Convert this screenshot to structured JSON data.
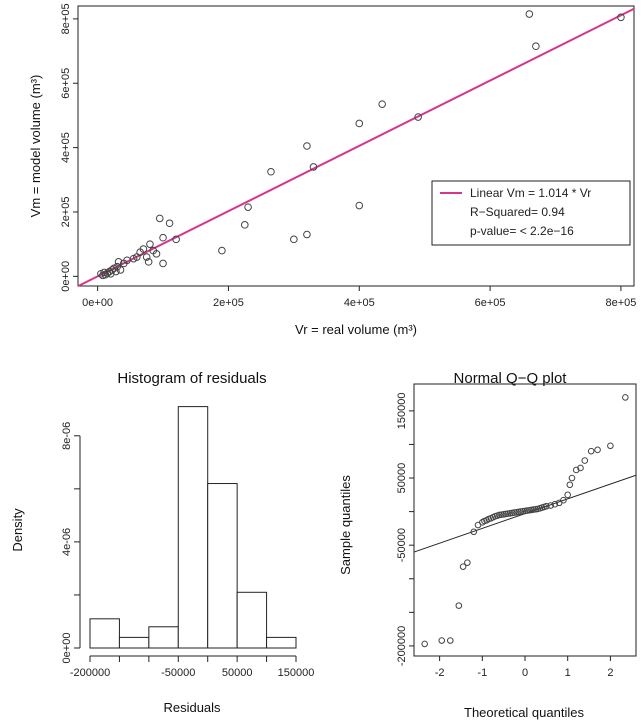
{
  "colors": {
    "fit_line": "#d6348f",
    "points": "#444444"
  },
  "chart_data": [
    {
      "type": "scatter",
      "xlabel": "Vr = real volume (m³)",
      "ylabel": "Vm = model volume (m³)",
      "xlim": [
        -30000,
        820000
      ],
      "ylim": [
        -30000,
        840000
      ],
      "x_ticks": [
        "0e+00",
        "2e+05",
        "4e+05",
        "6e+05",
        "8e+05"
      ],
      "x_tick_values": [
        0,
        200000,
        400000,
        600000,
        800000
      ],
      "y_ticks": [
        "0e+00",
        "2e+05",
        "4e+05",
        "6e+05",
        "8e+05"
      ],
      "y_tick_values": [
        0,
        200000,
        400000,
        600000,
        800000
      ],
      "legend": {
        "position": "bottom-right",
        "entries": [
          "Linear Vm = 1.014 * Vr",
          "R−Squared= 0.94",
          "p-value= < 2.2e−16"
        ]
      },
      "fit": {
        "slope": 1.014,
        "intercept": 0
      },
      "points": [
        [
          5000,
          8000
        ],
        [
          8000,
          3000
        ],
        [
          10000,
          12000
        ],
        [
          12000,
          5000
        ],
        [
          15000,
          10000
        ],
        [
          18000,
          15000
        ],
        [
          20000,
          8000
        ],
        [
          22000,
          20000
        ],
        [
          25000,
          25000
        ],
        [
          28000,
          15000
        ],
        [
          30000,
          30000
        ],
        [
          32000,
          45000
        ],
        [
          35000,
          20000
        ],
        [
          40000,
          40000
        ],
        [
          45000,
          50000
        ],
        [
          55000,
          55000
        ],
        [
          60000,
          60000
        ],
        [
          65000,
          75000
        ],
        [
          70000,
          85000
        ],
        [
          75000,
          60000
        ],
        [
          78000,
          45000
        ],
        [
          80000,
          100000
        ],
        [
          85000,
          80000
        ],
        [
          90000,
          70000
        ],
        [
          95000,
          180000
        ],
        [
          100000,
          40000
        ],
        [
          100000,
          120000
        ],
        [
          110000,
          165000
        ],
        [
          120000,
          115000
        ],
        [
          190000,
          80000
        ],
        [
          225000,
          160000
        ],
        [
          230000,
          215000
        ],
        [
          265000,
          325000
        ],
        [
          300000,
          115000
        ],
        [
          320000,
          130000
        ],
        [
          320000,
          405000
        ],
        [
          330000,
          340000
        ],
        [
          400000,
          220000
        ],
        [
          400000,
          475000
        ],
        [
          435000,
          535000
        ],
        [
          490000,
          495000
        ],
        [
          660000,
          815000
        ],
        [
          670000,
          715000
        ],
        [
          800000,
          805000
        ]
      ]
    },
    {
      "type": "bar",
      "title": "Histogram of residuals",
      "xlabel": "Residuals",
      "ylabel": "Density",
      "xlim": [
        -200000,
        150000
      ],
      "ylim": [
        0,
        9.5e-06
      ],
      "x_ticks": [
        "-200000",
        "-50000",
        "50000",
        "150000"
      ],
      "x_tick_values": [
        -200000,
        -50000,
        50000,
        150000
      ],
      "y_ticks": [
        "0e+00",
        "4e-06",
        "8e-06"
      ],
      "y_tick_values": [
        0,
        4e-06,
        8e-06
      ],
      "bins": [
        {
          "from": -200000,
          "to": -150000,
          "density": 1.1e-06
        },
        {
          "from": -150000,
          "to": -100000,
          "density": 4e-07
        },
        {
          "from": -100000,
          "to": -50000,
          "density": 8e-07
        },
        {
          "from": -50000,
          "to": 0,
          "density": 9.1e-06
        },
        {
          "from": 0,
          "to": 50000,
          "density": 6.2e-06
        },
        {
          "from": 50000,
          "to": 100000,
          "density": 2.1e-06
        },
        {
          "from": 100000,
          "to": 150000,
          "density": 4e-07
        }
      ]
    },
    {
      "type": "scatter",
      "title": "Normal Q−Q plot",
      "xlabel": "Theoretical quantiles",
      "ylabel": "Sample quantiles",
      "xlim": [
        -2.6,
        2.6
      ],
      "ylim": [
        -215000,
        190000
      ],
      "x_ticks": [
        "-2",
        "-1",
        "0",
        "1",
        "2"
      ],
      "x_tick_values": [
        -2,
        -1,
        0,
        1,
        2
      ],
      "y_ticks": [
        "-200000",
        "-50000",
        "50000",
        "150000"
      ],
      "y_tick_values": [
        -200000,
        -50000,
        50000,
        150000
      ],
      "qq_line": {
        "slope": 22000,
        "intercept": -3000
      },
      "points": [
        [
          -2.35,
          -197000
        ],
        [
          -1.95,
          -192000
        ],
        [
          -1.75,
          -192000
        ],
        [
          -1.55,
          -140000
        ],
        [
          -1.45,
          -82000
        ],
        [
          -1.35,
          -76000
        ],
        [
          -1.2,
          -30000
        ],
        [
          -1.1,
          -20000
        ],
        [
          -1.0,
          -16000
        ],
        [
          -0.95,
          -14000
        ],
        [
          -0.9,
          -13000
        ],
        [
          -0.85,
          -11000
        ],
        [
          -0.8,
          -10000
        ],
        [
          -0.75,
          -8500
        ],
        [
          -0.7,
          -7000
        ],
        [
          -0.65,
          -6000
        ],
        [
          -0.6,
          -5000
        ],
        [
          -0.55,
          -4500
        ],
        [
          -0.5,
          -4000
        ],
        [
          -0.45,
          -3500
        ],
        [
          -0.4,
          -3000
        ],
        [
          -0.35,
          -2500
        ],
        [
          -0.3,
          -2000
        ],
        [
          -0.25,
          -1500
        ],
        [
          -0.2,
          -1000
        ],
        [
          -0.15,
          -500
        ],
        [
          -0.1,
          0
        ],
        [
          -0.05,
          500
        ],
        [
          0.0,
          1000
        ],
        [
          0.05,
          1500
        ],
        [
          0.1,
          2000
        ],
        [
          0.15,
          2500
        ],
        [
          0.2,
          3000
        ],
        [
          0.25,
          3500
        ],
        [
          0.3,
          4000
        ],
        [
          0.35,
          5000
        ],
        [
          0.4,
          6000
        ],
        [
          0.45,
          7000
        ],
        [
          0.5,
          8000
        ],
        [
          0.6,
          9000
        ],
        [
          0.7,
          11000
        ],
        [
          0.8,
          13000
        ],
        [
          0.9,
          17000
        ],
        [
          1.0,
          25000
        ],
        [
          1.05,
          40000
        ],
        [
          1.1,
          50000
        ],
        [
          1.2,
          62000
        ],
        [
          1.3,
          65000
        ],
        [
          1.4,
          76000
        ],
        [
          1.55,
          90000
        ],
        [
          1.7,
          92000
        ],
        [
          2.0,
          98000
        ],
        [
          2.35,
          170000
        ]
      ]
    }
  ]
}
